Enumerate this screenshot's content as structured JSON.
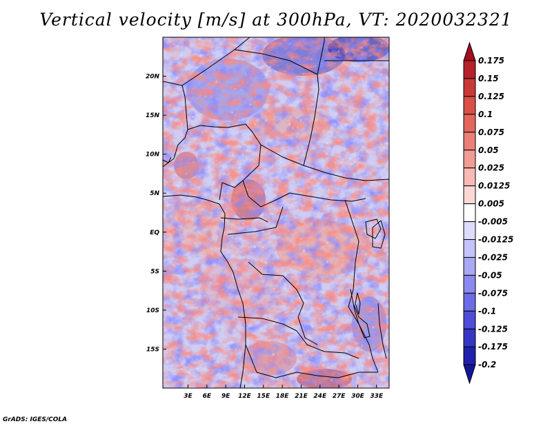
{
  "title": "Vertical velocity [m/s] at 300hPa, VT: 2020032321",
  "footer": "GrADS: IGES/COLA",
  "chart_data": {
    "type": "heatmap",
    "title": "Vertical velocity [m/s] at 300hPa, VT: 2020032321",
    "variable": "Vertical velocity",
    "units": "m/s",
    "level": "300hPa",
    "valid_time": "2020032321",
    "xlim": [
      -1,
      35
    ],
    "ylim": [
      -20,
      25
    ],
    "lat_ticks": [
      {
        "value": 20,
        "label": "20N"
      },
      {
        "value": 15,
        "label": "15N"
      },
      {
        "value": 10,
        "label": "10N"
      },
      {
        "value": 5,
        "label": "5N"
      },
      {
        "value": 0,
        "label": "EQ"
      },
      {
        "value": -5,
        "label": "5S"
      },
      {
        "value": -10,
        "label": "10S"
      },
      {
        "value": -15,
        "label": "15S"
      }
    ],
    "lon_ticks": [
      {
        "value": 3,
        "label": "3E"
      },
      {
        "value": 6,
        "label": "6E"
      },
      {
        "value": 9,
        "label": "9E"
      },
      {
        "value": 12,
        "label": "12E"
      },
      {
        "value": 15,
        "label": "15E"
      },
      {
        "value": 18,
        "label": "18E"
      },
      {
        "value": 21,
        "label": "21E"
      },
      {
        "value": 24,
        "label": "24E"
      },
      {
        "value": 27,
        "label": "27E"
      },
      {
        "value": 30,
        "label": "30E"
      },
      {
        "value": 33,
        "label": "33E"
      }
    ],
    "colorbar": {
      "levels": [
        {
          "label": "0.175",
          "value": 0.175
        },
        {
          "label": "0.15",
          "value": 0.15
        },
        {
          "label": "0.125",
          "value": 0.125
        },
        {
          "label": "0.1",
          "value": 0.1
        },
        {
          "label": "0.075",
          "value": 0.075
        },
        {
          "label": "0.05",
          "value": 0.05
        },
        {
          "label": "0.025",
          "value": 0.025
        },
        {
          "label": "0.0125",
          "value": 0.0125
        },
        {
          "label": "0.005",
          "value": 0.005
        },
        {
          "label": "-0.005",
          "value": -0.005
        },
        {
          "label": "-0.0125",
          "value": -0.0125
        },
        {
          "label": "-0.025",
          "value": -0.025
        },
        {
          "label": "-0.05",
          "value": -0.05
        },
        {
          "label": "-0.075",
          "value": -0.075
        },
        {
          "label": "-0.1",
          "value": -0.1
        },
        {
          "label": "-0.125",
          "value": -0.125
        },
        {
          "label": "-0.175",
          "value": -0.175
        },
        {
          "label": "-0.2",
          "value": -0.2
        }
      ],
      "colors": [
        "#a0101e",
        "#b5222a",
        "#c83a38",
        "#d85048",
        "#e2665e",
        "#ea8078",
        "#f19c94",
        "#f7bab4",
        "#fcd8d4",
        "#ffffff",
        "#dcdcfc",
        "#c4c4fa",
        "#a8a8f4",
        "#8a8aee",
        "#6c6ce4",
        "#4e4ed8",
        "#3636c4",
        "#2020ac",
        "#14149a"
      ]
    }
  }
}
